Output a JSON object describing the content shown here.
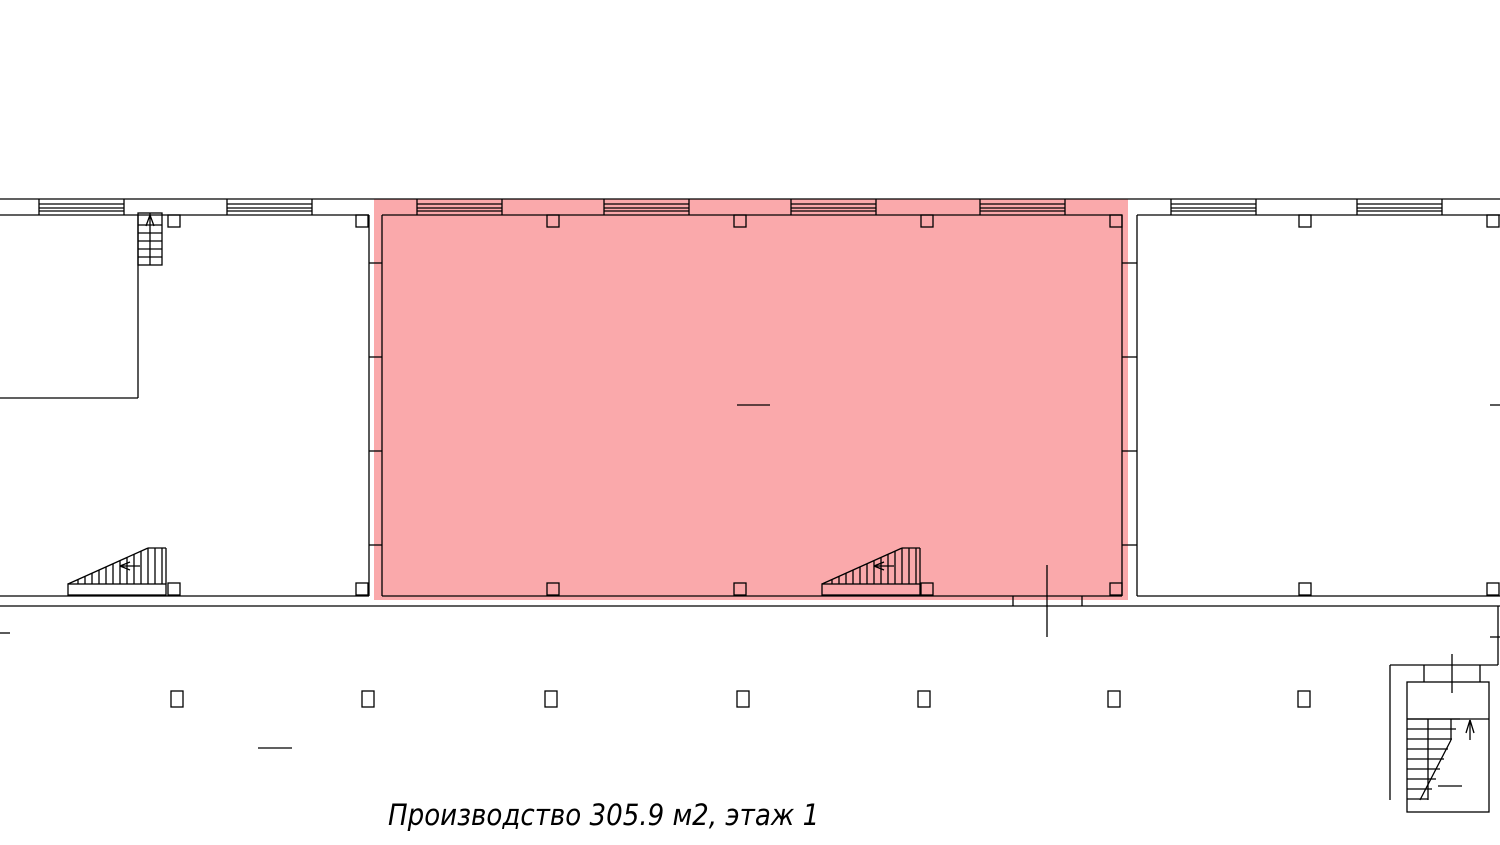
{
  "plan": {
    "caption": "Производство 305.9 м2, этаж 1",
    "highlight_color": "#f99a9c",
    "highlighted_room": "Производство",
    "area_m2": 305.9,
    "floor": 1
  }
}
